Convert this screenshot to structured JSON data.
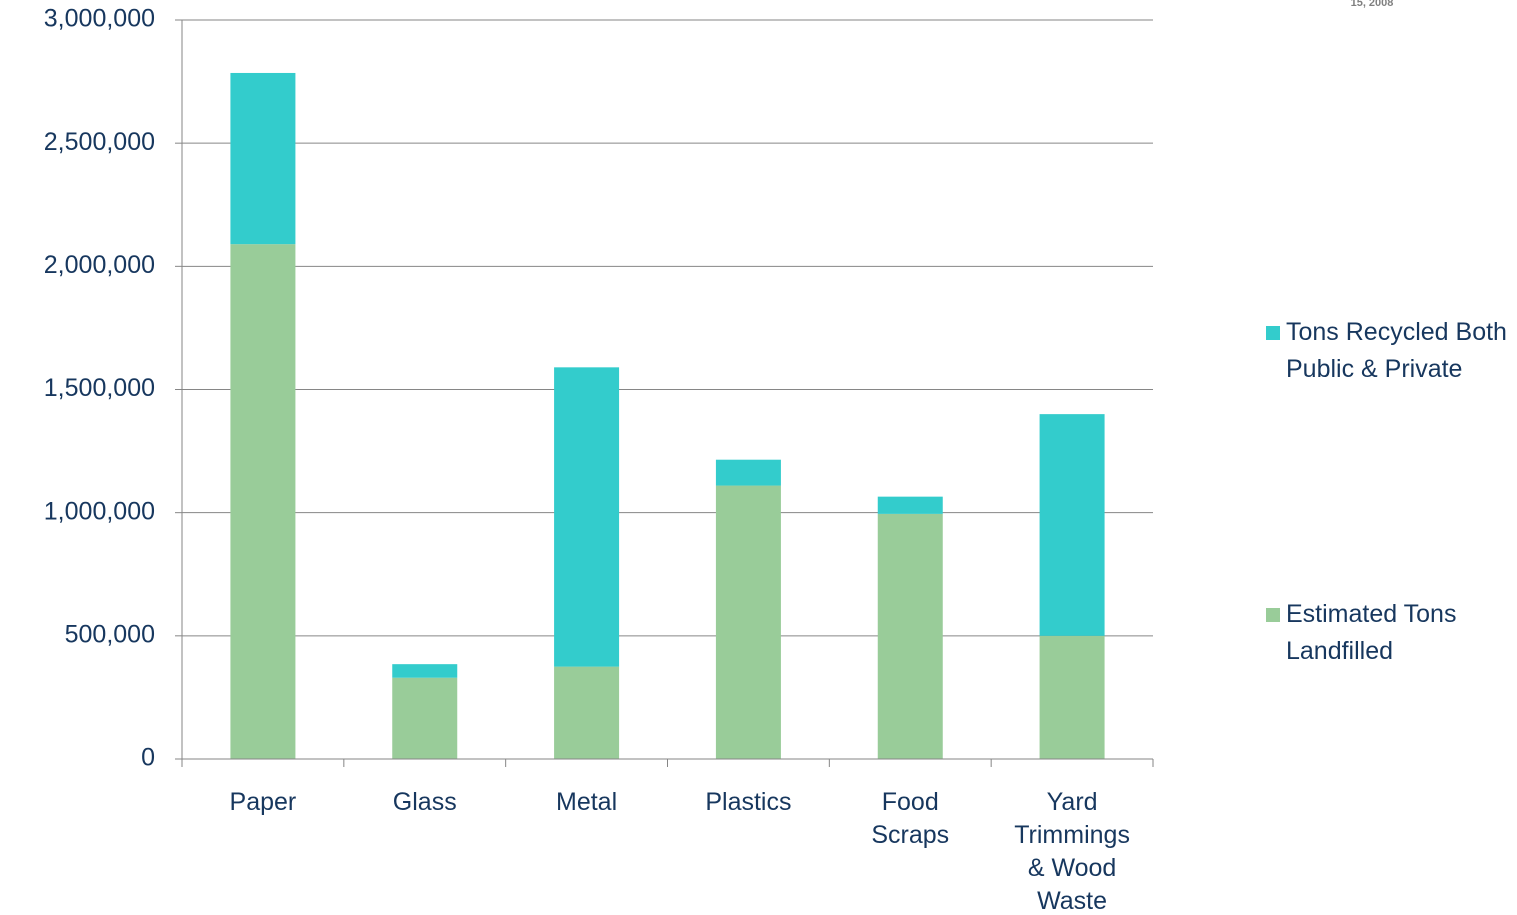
{
  "note": "15, 2008",
  "chart_data": {
    "type": "stacked_bar",
    "categories": [
      "Paper",
      "Glass",
      "Metal",
      "Plastics",
      "Food Scraps",
      "Yard Trimmings & Wood Waste"
    ],
    "series": [
      {
        "name": "Estimated Tons Landfilled",
        "color": "#99cc99",
        "values": [
          2090000,
          330000,
          375000,
          1110000,
          995000,
          500000
        ]
      },
      {
        "name": "Tons Recycled Both Public & Private",
        "color": "#33cccc",
        "values": [
          695000,
          55000,
          1215000,
          105000,
          70000,
          900000
        ]
      }
    ],
    "ylim": [
      0,
      3000000
    ],
    "yticks": [
      {
        "value": 0,
        "label": "0"
      },
      {
        "value": 500000,
        "label": "500,000"
      },
      {
        "value": 1000000,
        "label": "1,000,000"
      },
      {
        "value": 1500000,
        "label": "1,500,000"
      },
      {
        "value": 2000000,
        "label": "2,000,000"
      },
      {
        "value": 2500000,
        "label": "2,500,000"
      },
      {
        "value": 3000000,
        "label": "3,000,000"
      }
    ],
    "grid": true,
    "legend": "right"
  }
}
